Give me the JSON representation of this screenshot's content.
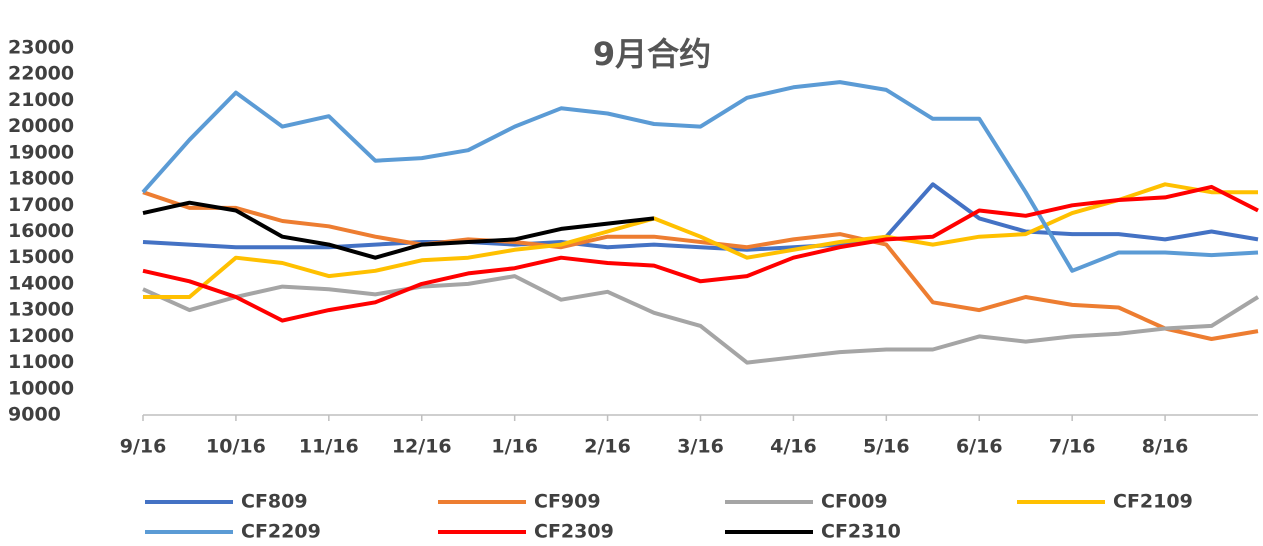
{
  "chart_data": {
    "type": "line",
    "title": "9月合约",
    "categories": [
      "9/16",
      null,
      "10/16",
      null,
      "11/16",
      null,
      "12/16",
      null,
      "1/16",
      null,
      "2/16",
      null,
      "3/16",
      null,
      "4/16",
      null,
      "5/16",
      null,
      "6/16",
      null,
      "7/16",
      null,
      "8/16",
      null,
      null
    ],
    "series": [
      {
        "name": "CF809",
        "color": "#4472c4",
        "values": [
          15600,
          15500,
          15400,
          15400,
          15400,
          15500,
          15600,
          15600,
          15500,
          15600,
          15400,
          15500,
          15400,
          15300,
          15400,
          15500,
          15800,
          17800,
          16500,
          16000,
          15900,
          15900,
          15700,
          16000,
          15700
        ]
      },
      {
        "name": "CF909",
        "color": "#ed7d31",
        "values": [
          17500,
          16900,
          16900,
          16400,
          16200,
          15800,
          15500,
          15700,
          15600,
          15400,
          15800,
          15800,
          15600,
          15400,
          15700,
          15900,
          15500,
          13300,
          13000,
          13500,
          13200,
          13100,
          12300,
          11900,
          12200
        ]
      },
      {
        "name": "CF009",
        "color": "#a5a5a5",
        "values": [
          13800,
          13000,
          13500,
          13900,
          13800,
          13600,
          13900,
          14000,
          14300,
          13400,
          13700,
          12900,
          12400,
          11000,
          11200,
          11400,
          11500,
          11500,
          12000,
          11800,
          12000,
          12100,
          12300,
          12400,
          13500
        ]
      },
      {
        "name": "CF2109",
        "color": "#ffc000",
        "values": [
          13500,
          13500,
          15000,
          14800,
          14300,
          14500,
          14900,
          15000,
          15300,
          15500,
          16000,
          16500,
          15800,
          15000,
          15300,
          15600,
          15800,
          15500,
          15800,
          15900,
          16700,
          17200,
          17800,
          17500,
          17500
        ]
      },
      {
        "name": "CF2209",
        "color": "#5b9bd5",
        "values": [
          17500,
          19500,
          21300,
          20000,
          20400,
          18700,
          18800,
          19100,
          20000,
          20700,
          20500,
          20100,
          20000,
          21100,
          21500,
          21700,
          21400,
          20300,
          20300,
          17500,
          14500,
          15200,
          15200,
          15100,
          15200
        ]
      },
      {
        "name": "CF2309",
        "color": "#ff0000",
        "values": [
          14500,
          14100,
          13500,
          12600,
          13000,
          13300,
          14000,
          14400,
          14600,
          15000,
          14800,
          14700,
          14100,
          14300,
          15000,
          15400,
          15700,
          15800,
          16800,
          16600,
          17000,
          17200,
          17300,
          17700,
          16800
        ]
      },
      {
        "name": "CF2310",
        "color": "#000000",
        "values": [
          16700,
          17100,
          16800,
          15800,
          15500,
          15000,
          15500,
          15600,
          15700,
          16100,
          16300,
          16500,
          null,
          null,
          null,
          null,
          null,
          null,
          null,
          null,
          null,
          null,
          null,
          null,
          null
        ]
      }
    ],
    "ylim": [
      9000,
      23000
    ],
    "yticks": [
      9000,
      10000,
      11000,
      12000,
      13000,
      14000,
      15000,
      16000,
      17000,
      18000,
      19000,
      20000,
      21000,
      22000,
      23000
    ],
    "grid": false
  }
}
